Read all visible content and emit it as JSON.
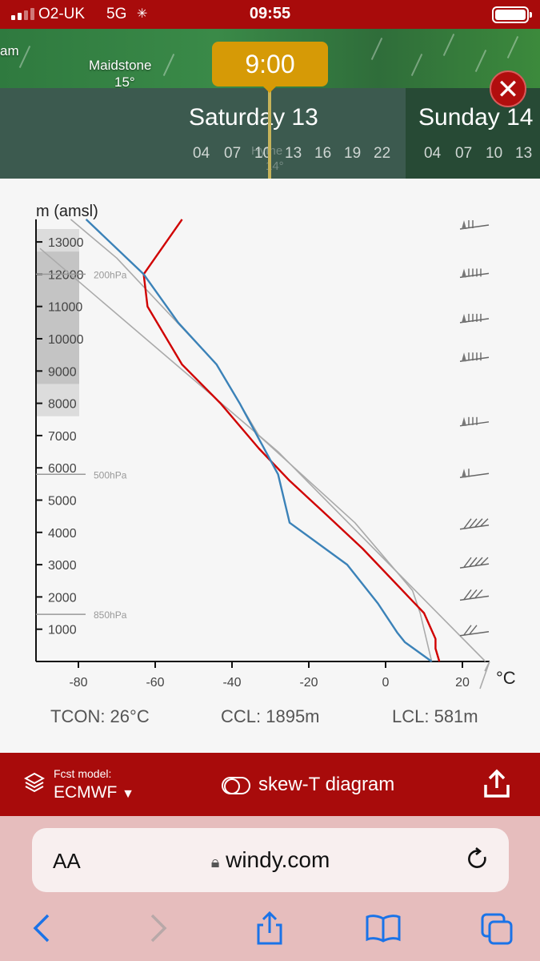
{
  "status_bar": {
    "carrier": "O2-UK",
    "network": "5G",
    "time": "09:55"
  },
  "map": {
    "labels": [
      {
        "text": "am",
        "left": 0,
        "top": 54
      },
      {
        "text": "Maidstone",
        "left": 111,
        "top": 72
      },
      {
        "text": "15°",
        "left": 143,
        "top": 93
      }
    ]
  },
  "timeline": {
    "current_time": "9:00",
    "days": [
      {
        "label": "Saturday 13",
        "hours": [
          "04",
          "07",
          "10",
          "13",
          "16",
          "19",
          "22"
        ]
      },
      {
        "label": "Sunday 14",
        "hours": [
          "04",
          "07",
          "10",
          "13"
        ]
      }
    ],
    "underlay": [
      "Hythe",
      "14°"
    ]
  },
  "chart_data": {
    "type": "line",
    "xlabel": "°C",
    "ylabel": "m (amsl)",
    "xlim": [
      -90,
      25
    ],
    "ylim": [
      0,
      13700
    ],
    "x_ticks": [
      -80,
      -60,
      -40,
      -20,
      0,
      20
    ],
    "y_ticks": [
      1000,
      2000,
      3000,
      4000,
      5000,
      6000,
      7000,
      8000,
      9000,
      10000,
      11000,
      12000,
      13000
    ],
    "pressure_levels": [
      {
        "label": "850hPa",
        "alt": 1460
      },
      {
        "label": "500hPa",
        "alt": 5800
      },
      {
        "label": "200hPa",
        "alt": 12000
      }
    ],
    "series": [
      {
        "color": "#d00000",
        "points": [
          [
            14,
            0
          ],
          [
            13,
            400
          ],
          [
            13,
            700
          ],
          [
            10,
            1500
          ],
          [
            6,
            2000
          ],
          [
            -6,
            3500
          ],
          [
            -15,
            4500
          ],
          [
            -25,
            5600
          ],
          [
            -33,
            6600
          ],
          [
            -43,
            8000
          ],
          [
            -53,
            9200
          ],
          [
            -62,
            11000
          ],
          [
            -63,
            12000
          ],
          [
            -53,
            13700
          ]
        ]
      },
      {
        "color": "#3b82b8",
        "points": [
          [
            12,
            0
          ],
          [
            5,
            600
          ],
          [
            3,
            900
          ],
          [
            -2,
            1800
          ],
          [
            -10,
            3000
          ],
          [
            -25,
            4300
          ],
          [
            -28,
            5800
          ],
          [
            -38,
            8000
          ],
          [
            -44,
            9200
          ],
          [
            -54,
            10500
          ],
          [
            -63,
            12000
          ],
          [
            -78,
            13700
          ]
        ]
      },
      {
        "color": "#aaaaaa",
        "points": [
          [
            12,
            0
          ],
          [
            9,
            1500
          ],
          [
            7,
            2200
          ],
          [
            -8,
            4300
          ],
          [
            -33,
            7000
          ],
          [
            -44,
            9200
          ],
          [
            -70,
            12500
          ],
          [
            -82,
            13700
          ]
        ]
      },
      {
        "color": "#aaaaaa",
        "points": [
          [
            26,
            0
          ],
          [
            -28,
            6500
          ],
          [
            -90,
            12800
          ]
        ]
      }
    ],
    "grey_blocks": [
      {
        "from": 7600,
        "to": 13400,
        "shade": "#dcdcdc"
      },
      {
        "from": 8600,
        "to": 12700,
        "shade": "#c4c4c4"
      }
    ],
    "wind_barbs": [
      {
        "alt": 13400,
        "barbs": 2
      },
      {
        "alt": 11900,
        "barbs": 4
      },
      {
        "alt": 10500,
        "barbs": 4
      },
      {
        "alt": 9300,
        "barbs": 4
      },
      {
        "alt": 7300,
        "barbs": 3
      },
      {
        "alt": 5700,
        "barbs": 1
      },
      {
        "alt": 4100,
        "barbs": 4
      },
      {
        "alt": 2900,
        "barbs": 4
      },
      {
        "alt": 1900,
        "barbs": 3
      },
      {
        "alt": 800,
        "barbs": 2
      }
    ],
    "wind_barb_fractions": [
      {
        "alt": 13400,
        "ticks": 2
      }
    ]
  },
  "stats": {
    "tcon": "TCON: 26°C",
    "ccl": "CCL: 1895m",
    "lcl": "LCL: 581m"
  },
  "bottom_bar": {
    "model_caption": "Fcst model:",
    "model_name": "ECMWF",
    "mode_label": "skew-T diagram"
  },
  "browser": {
    "text_size_label": "AA",
    "url": "windy.com"
  }
}
